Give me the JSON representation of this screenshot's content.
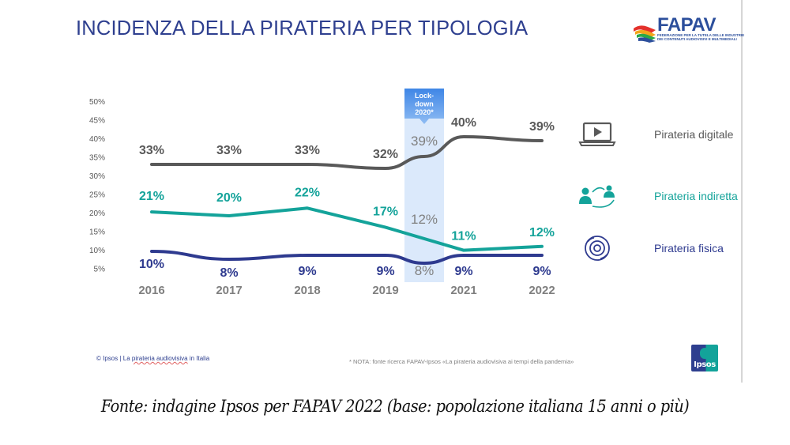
{
  "slide": {
    "title": "INCIDENZA DELLA PIRATERIA PER TIPOLOGIA",
    "brand_logo": {
      "name": "FAPAV",
      "subtitle_line1": "FEDERAZIONE PER LA TUTELA DELLE INDUSTRIE",
      "subtitle_line2": "DEI CONTENUTI AUDIOVISIVI E MULTIMEDIALI"
    },
    "footer_left_prefix": "© Ipsos | La ",
    "footer_left_link": "pirateria audiovisiva",
    "footer_left_suffix": " in Italia",
    "footer_note": "* NOTA: fonte ricerca FAPAV-Ipsos «La pirateria audiovisiva ai tempi della pandemia»",
    "ipsos_logo_text": "Ipsos"
  },
  "caption": "Fonte: indagine Ipsos per FAPAV 2022 (base: popolazione italiana 15 anni o più)",
  "colors": {
    "title": "#2e3f8f",
    "digital": "#595959",
    "indirect": "#14a39a",
    "physical": "#2e3a8f",
    "lockdown_band": "#dbe9fb",
    "lockdown_header": "#5b9bea",
    "lockdown_label": "#808080"
  },
  "chart_data": {
    "type": "line",
    "title": "INCIDENZA DELLA PIRATERIA PER TIPOLOGIA",
    "xlabel": "",
    "ylabel": "",
    "ylim": [
      5,
      50
    ],
    "yticks": [
      "50%",
      "45%",
      "40%",
      "35%",
      "30%",
      "25%",
      "20%",
      "15%",
      "10%",
      "5%"
    ],
    "categories": [
      "2016",
      "2017",
      "2018",
      "2019",
      "2021",
      "2022"
    ],
    "grid": false,
    "legend_position": "right",
    "series": [
      {
        "key": "digital",
        "name": "Pirateria digitale",
        "icon": "laptop-play-icon",
        "values": [
          33,
          33,
          33,
          32,
          40,
          39
        ],
        "labels": [
          "33%",
          "33%",
          "33%",
          "32%",
          "40%",
          "39%"
        ]
      },
      {
        "key": "indirect",
        "name": "Pirateria indiretta",
        "icon": "people-exchange-icon",
        "values": [
          21,
          20,
          22,
          17,
          11,
          12
        ],
        "labels": [
          "21%",
          "20%",
          "22%",
          "17%",
          "11%",
          "12%"
        ]
      },
      {
        "key": "physical",
        "name": "Pirateria fisica",
        "icon": "disc-icon",
        "values": [
          10,
          8,
          9,
          9,
          9,
          9
        ],
        "labels": [
          "10%",
          "8%",
          "9%",
          "9%",
          "9%",
          "9%"
        ]
      }
    ],
    "annotation": {
      "label": "Lock-down 2020*",
      "label_lines": [
        "Lock-",
        "down",
        "2020*"
      ],
      "year": "2020",
      "position_between": [
        "2019",
        "2021"
      ],
      "values": {
        "digital": 39,
        "indirect": 12,
        "physical": 8
      },
      "value_labels": {
        "digital": "39%",
        "indirect": "12%",
        "physical": "8%"
      }
    }
  }
}
